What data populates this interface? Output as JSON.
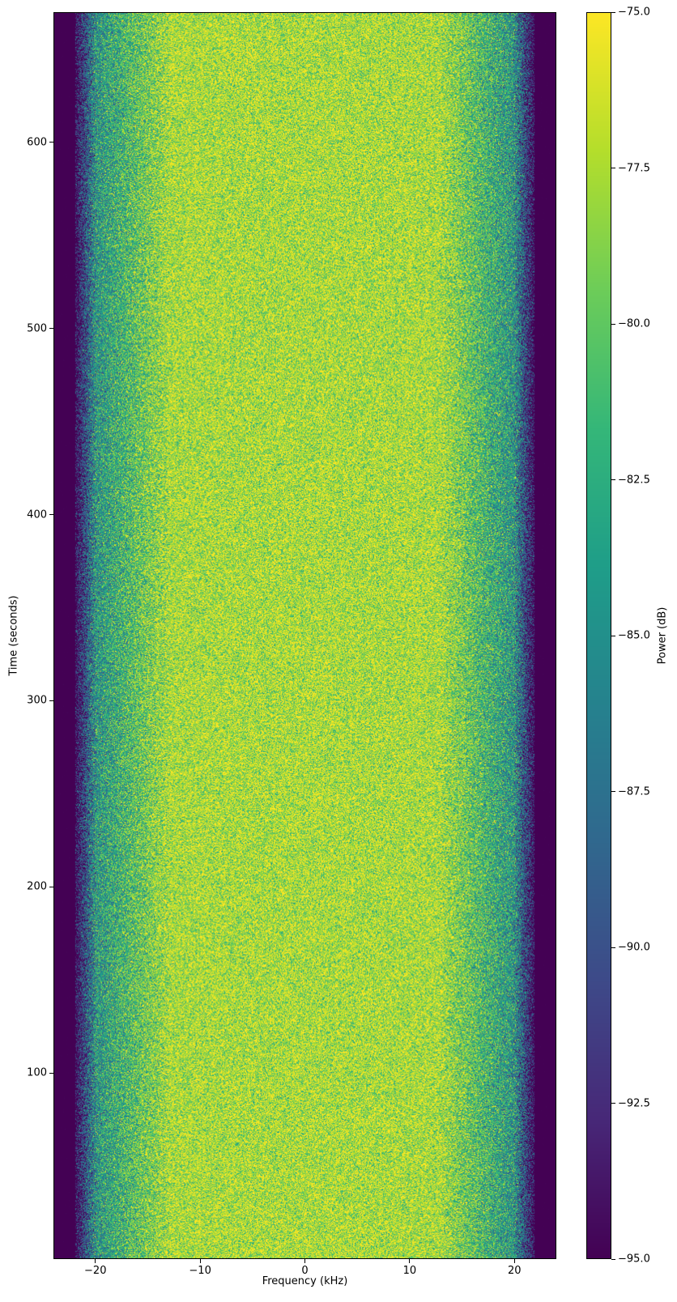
{
  "chart_data": {
    "type": "heatmap",
    "title": "",
    "xlabel": "Frequency (kHz)",
    "ylabel": "Time (seconds)",
    "xlim": [
      -24,
      24
    ],
    "ylim": [
      0,
      670
    ],
    "x_ticks": [
      -20,
      -10,
      0,
      10,
      20
    ],
    "x_tick_labels": [
      "−20",
      "−10",
      "0",
      "10",
      "20"
    ],
    "y_ticks": [
      100,
      200,
      300,
      400,
      500,
      600
    ],
    "y_tick_labels": [
      "100",
      "200",
      "300",
      "400",
      "500",
      "600"
    ],
    "colorbar": {
      "label": "Power (dB)",
      "colormap": "viridis",
      "clim": [
        -95,
        -75
      ],
      "ticks": [
        -75,
        -77.5,
        -80,
        -82.5,
        -85,
        -87.5,
        -90,
        -92.5,
        -95
      ],
      "tick_labels": [
        "−75.0",
        "−77.5",
        "−80.0",
        "−82.5",
        "−85.0",
        "−87.5",
        "−90.0",
        "−92.5",
        "−95.0"
      ]
    },
    "grid": false
  }
}
